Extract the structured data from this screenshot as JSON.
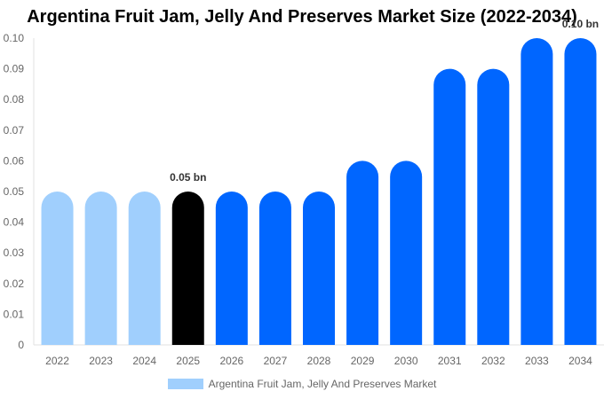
{
  "chart_data": {
    "type": "bar",
    "title": "Argentina Fruit Jam, Jelly And Preserves Market Size (2022-2034)",
    "categories": [
      "2022",
      "2023",
      "2024",
      "2025",
      "2026",
      "2027",
      "2028",
      "2029",
      "2030",
      "2031",
      "2032",
      "2033",
      "2034"
    ],
    "series": [
      {
        "name": "Argentina Fruit Jam, Jelly And Preserves Market",
        "values": [
          0.05,
          0.05,
          0.05,
          0.05,
          0.05,
          0.05,
          0.05,
          0.06,
          0.06,
          0.09,
          0.09,
          0.1,
          0.1
        ]
      }
    ],
    "ylim": [
      0,
      0.1
    ],
    "yticks": [
      "0",
      "0.01",
      "0.02",
      "0.03",
      "0.04",
      "0.05",
      "0.06",
      "0.07",
      "0.08",
      "0.09",
      "0.10"
    ],
    "data_labels": [
      {
        "category": "2025",
        "text": "0.05 bn"
      },
      {
        "category": "2034",
        "text": "0.10 bn"
      }
    ],
    "colors": {
      "historical": "#a0cffd",
      "current": "#000000",
      "forecast": "#0066ff"
    },
    "bar_color_groups": [
      "historical",
      "historical",
      "historical",
      "current",
      "forecast",
      "forecast",
      "forecast",
      "forecast",
      "forecast",
      "forecast",
      "forecast",
      "forecast",
      "forecast"
    ],
    "grid": false,
    "legend": "bottom"
  }
}
